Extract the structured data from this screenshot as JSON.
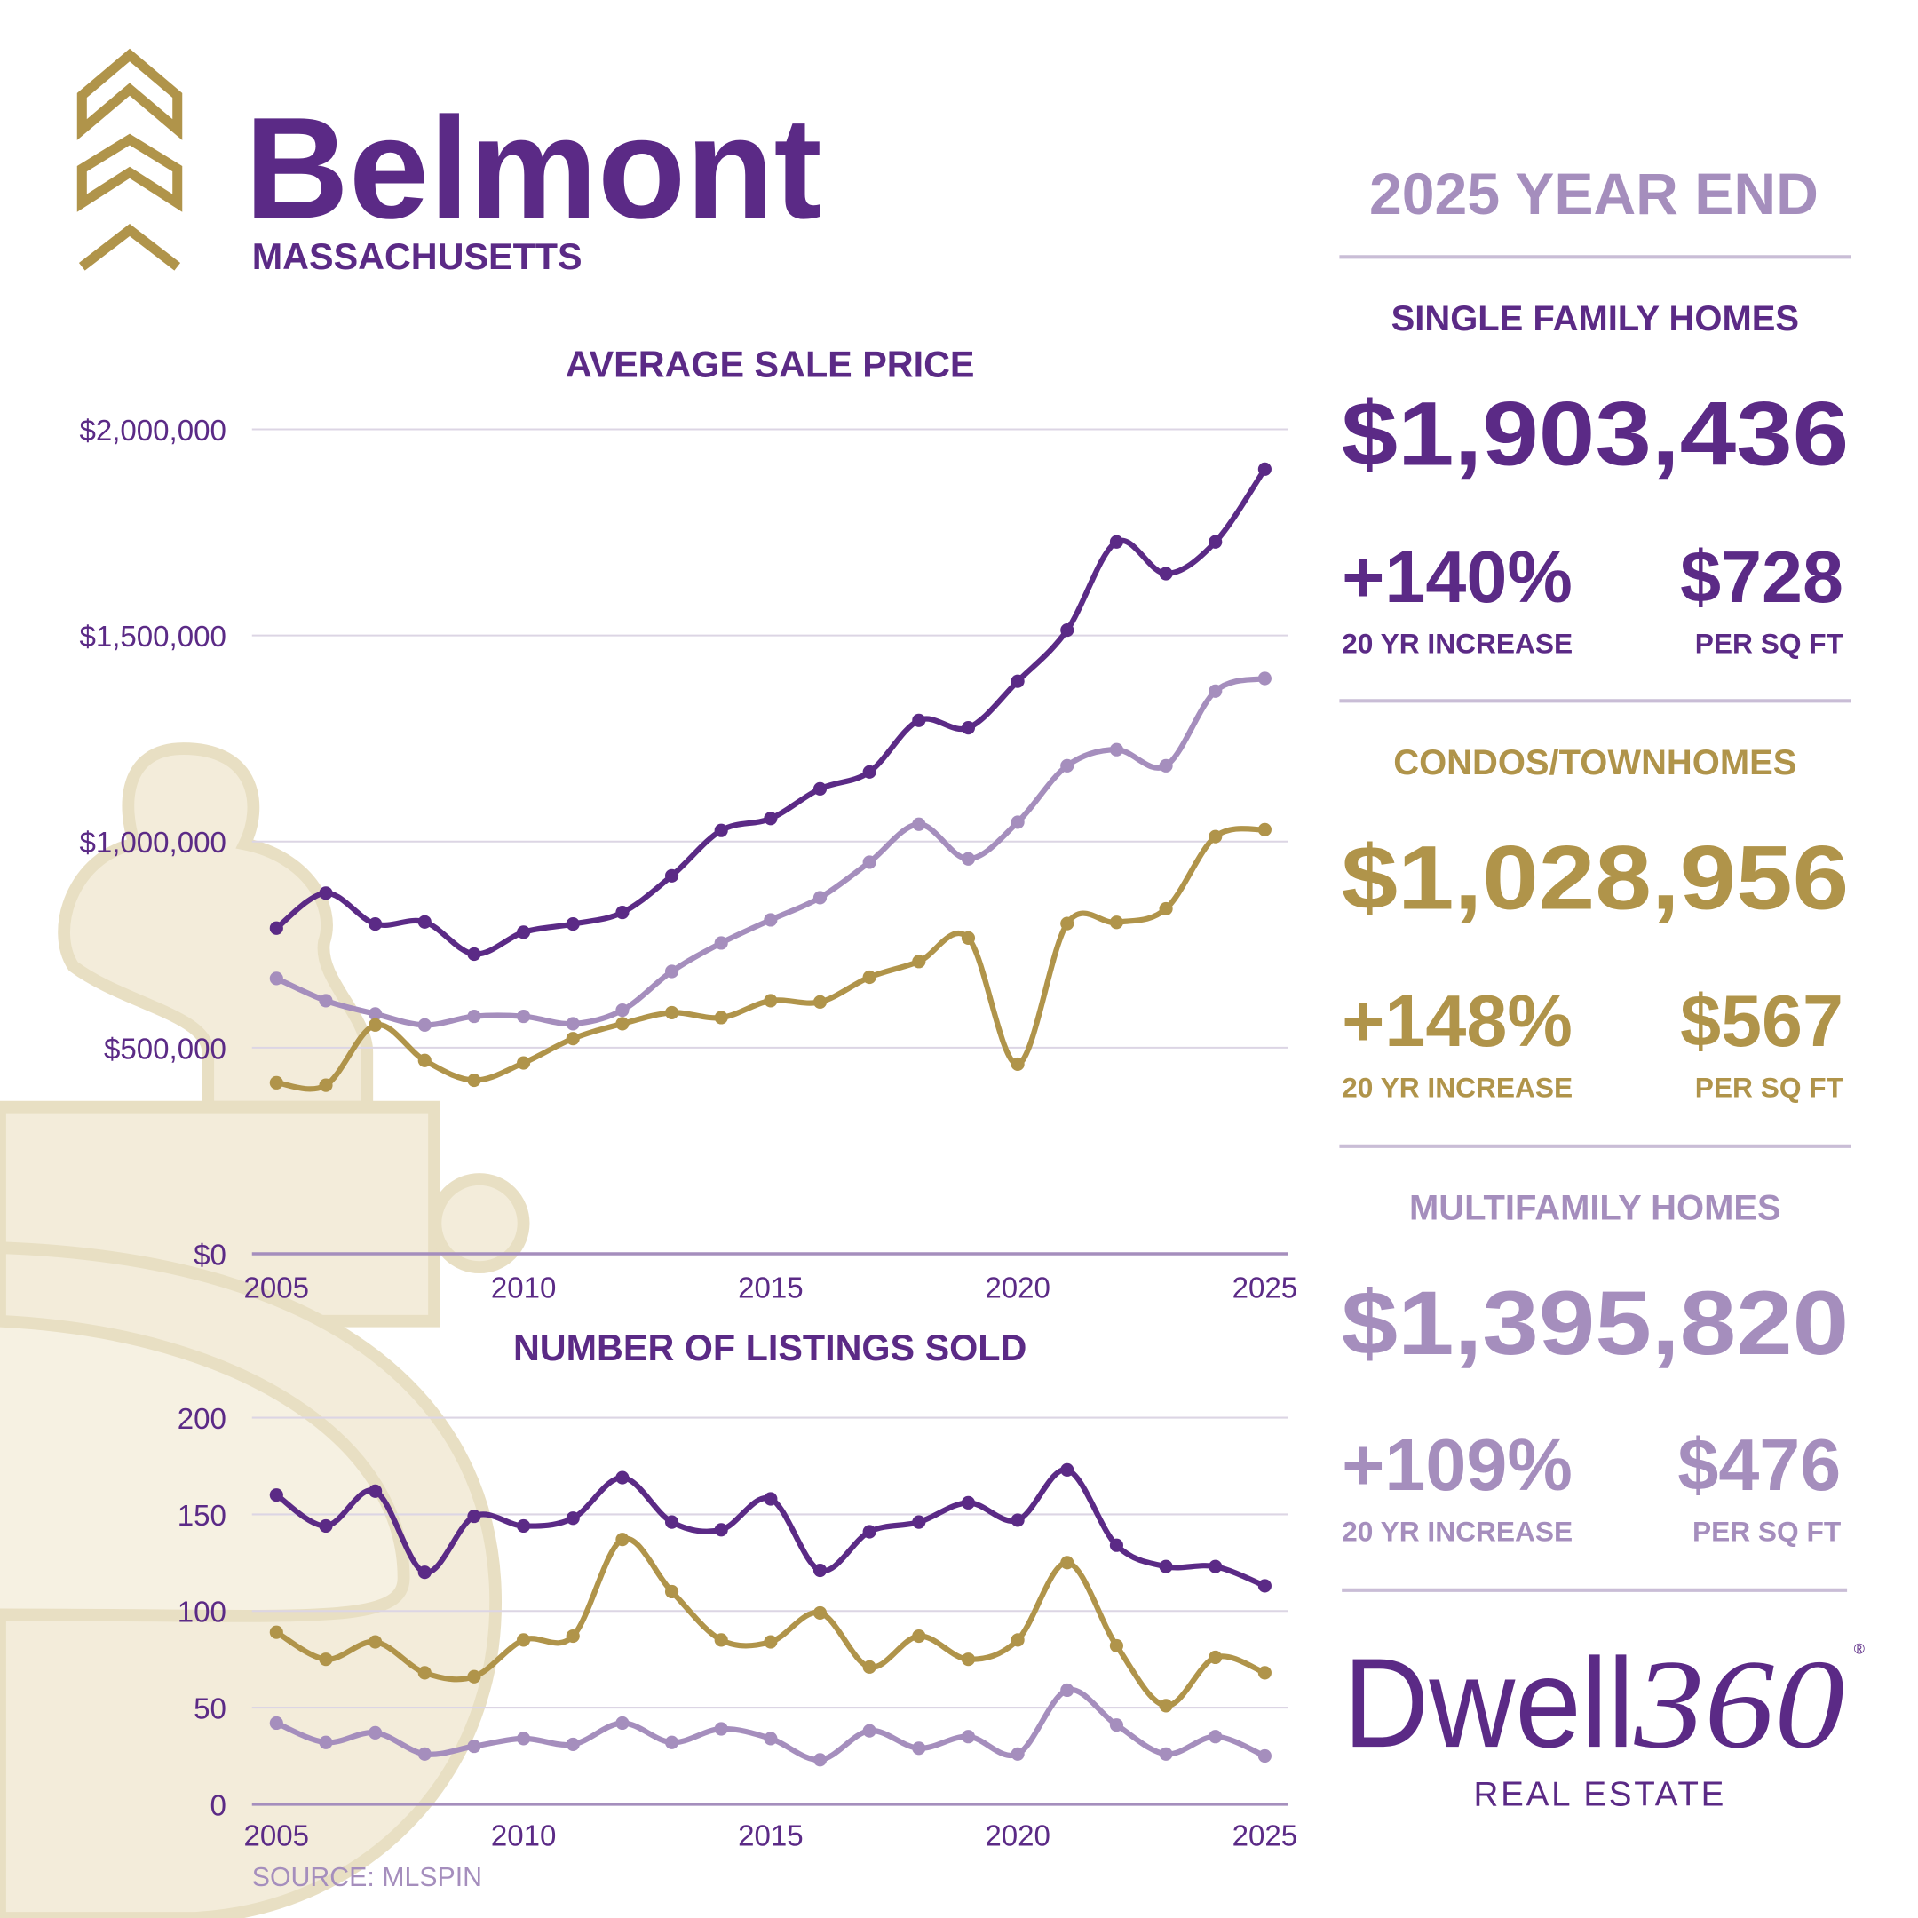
{
  "header": {
    "title": "Belmont",
    "subtitle": "MASSACHUSETTS"
  },
  "chart_data": [
    {
      "type": "line",
      "title": "AVERAGE SALE PRICE",
      "x": [
        2005,
        2006,
        2007,
        2008,
        2009,
        2010,
        2011,
        2012,
        2013,
        2014,
        2015,
        2016,
        2017,
        2018,
        2019,
        2020,
        2021,
        2022,
        2023,
        2024,
        2025
      ],
      "xlim": [
        2005,
        2025
      ],
      "xticks": [
        2005,
        2010,
        2015,
        2020,
        2025
      ],
      "ylim": [
        0,
        2000000
      ],
      "yticks": [
        {
          "value": 0,
          "label": "$0"
        },
        {
          "value": 500000,
          "label": "$500,000"
        },
        {
          "value": 1000000,
          "label": "$1,000,000"
        },
        {
          "value": 1500000,
          "label": "$1,500,000"
        },
        {
          "value": 2000000,
          "label": "$2,000,000"
        }
      ],
      "grid": true,
      "series": [
        {
          "color": "#a58ebd",
          "values": [
            668000,
            614000,
            582000,
            555000,
            576000,
            576000,
            558000,
            591000,
            685000,
            754000,
            810000,
            864000,
            950000,
            1042000,
            958000,
            1047000,
            1184000,
            1223000,
            1184000,
            1365000,
            1395820
          ]
        },
        {
          "color": "#b0944a",
          "values": [
            415000,
            409000,
            555000,
            469000,
            421000,
            463000,
            522000,
            558000,
            585000,
            573000,
            614000,
            611000,
            671000,
            709000,
            766000,
            460000,
            801000,
            804000,
            837000,
            1012000,
            1028956
          ]
        },
        {
          "color": "#5b2a86",
          "values": [
            790000,
            875000,
            800000,
            805000,
            727000,
            780000,
            800000,
            828000,
            917000,
            1027000,
            1056000,
            1128000,
            1169000,
            1294000,
            1276000,
            1389000,
            1513000,
            1727000,
            1650000,
            1727000,
            1903436
          ]
        }
      ]
    },
    {
      "type": "line",
      "title": "NUMBER OF LISTINGS SOLD",
      "x": [
        2005,
        2006,
        2007,
        2008,
        2009,
        2010,
        2011,
        2012,
        2013,
        2014,
        2015,
        2016,
        2017,
        2018,
        2019,
        2020,
        2021,
        2022,
        2023,
        2024,
        2025
      ],
      "xlim": [
        2005,
        2025
      ],
      "xticks": [
        2005,
        2010,
        2015,
        2020,
        2025
      ],
      "ylim": [
        0,
        200
      ],
      "yticks": [
        0,
        50,
        100,
        150,
        200
      ],
      "grid": true,
      "series": [
        {
          "color": "#a58ebd",
          "values": [
            42,
            32,
            37,
            26,
            30,
            34,
            31,
            42,
            32,
            39,
            34,
            23,
            38,
            29,
            35,
            26,
            59,
            41,
            26,
            35,
            25
          ]
        },
        {
          "color": "#b0944a",
          "values": [
            89,
            75,
            84,
            68,
            66,
            85,
            87,
            137,
            110,
            85,
            84,
            99,
            71,
            87,
            75,
            85,
            125,
            82,
            51,
            76,
            68
          ]
        },
        {
          "color": "#5b2a86",
          "values": [
            160,
            144,
            162,
            120,
            149,
            144,
            148,
            169,
            146,
            142,
            158,
            121,
            141,
            146,
            156,
            147,
            173,
            134,
            123,
            123,
            113
          ]
        }
      ]
    }
  ],
  "source": "SOURCE: MLSPIN",
  "summary": {
    "title": "2025 YEAR END",
    "sections": [
      {
        "heading": "SINGLE FAMILY HOMES",
        "price": "$1,903,436",
        "increase": "+140%",
        "increase_label": "20 YR INCREASE",
        "per_sqft": "$728",
        "per_sqft_label": "PER SQ FT"
      },
      {
        "heading": "CONDOS/TOWNHOMES",
        "price": "$1,028,956",
        "increase": "+148%",
        "increase_label": "20 YR INCREASE",
        "per_sqft": "$567",
        "per_sqft_label": "PER SQ FT"
      },
      {
        "heading": "MULTIFAMILY HOMES",
        "price": "$1,395,820",
        "increase": "+109%",
        "increase_label": "20 YR INCREASE",
        "per_sqft": "$476",
        "per_sqft_label": "PER SQ FT"
      }
    ]
  },
  "brand": {
    "name": "Dwell",
    "number": "360",
    "mark": "®",
    "tagline": "REAL ESTATE"
  }
}
